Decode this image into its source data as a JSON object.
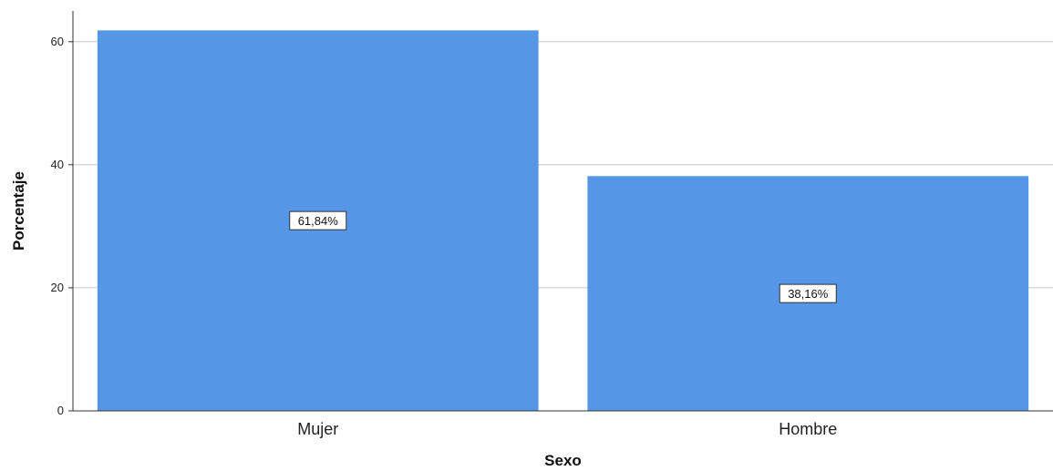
{
  "chart_data": {
    "type": "bar",
    "categories": [
      "Mujer",
      "Hombre"
    ],
    "values": [
      61.84,
      38.16
    ],
    "data_labels": [
      "61,84%",
      "38,16%"
    ],
    "xlabel": "Sexo",
    "ylabel": "Porcentaje",
    "ylim": [
      0,
      65
    ],
    "yticks": [
      0,
      20,
      40,
      60
    ],
    "ytick_labels": [
      "0",
      "20",
      "40",
      "60"
    ],
    "grid": true,
    "legend": "none",
    "colors": {
      "bar": "#5596E6",
      "grid": "#C8C8C8",
      "axis": "#333333",
      "label_box_fill": "#FFFFFF",
      "label_box_stroke": "#333333"
    }
  }
}
